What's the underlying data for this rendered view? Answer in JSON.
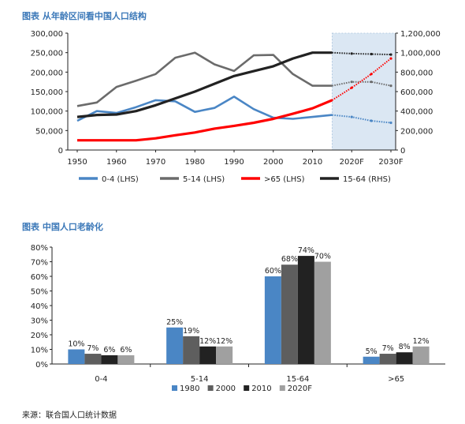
{
  "chart_data": [
    {
      "type": "line",
      "title": "图表 从年龄区间看中国人口结构",
      "x_ticks": [
        "1950",
        "1960",
        "1970",
        "1980",
        "1990",
        "2000",
        "2010",
        "2020F",
        "2030F"
      ],
      "forecast_from": 2015,
      "ylim_left": [
        0,
        300000
      ],
      "ylim_right": [
        0,
        1200000
      ],
      "left_ticks": [
        "0",
        "50,000",
        "100,000",
        "150,000",
        "200,000",
        "250,000",
        "300,000"
      ],
      "right_ticks": [
        "0",
        "200,000",
        "400,000",
        "600,000",
        "800,000",
        "1,000,000",
        "1,200,000"
      ],
      "series": [
        {
          "name": "0-4 (LHS)",
          "axis": "left",
          "color": "#4a86c5",
          "x": [
            1950,
            1955,
            1960,
            1965,
            1970,
            1975,
            1980,
            1985,
            1990,
            1995,
            2000,
            2005,
            2010,
            2015,
            2020,
            2025,
            2030
          ],
          "values": [
            75000,
            100000,
            95000,
            110000,
            128000,
            125000,
            98000,
            108000,
            137000,
            105000,
            83000,
            80000,
            85000,
            90000,
            85000,
            75000,
            70000
          ]
        },
        {
          "name": "5-14 (LHS)",
          "axis": "left",
          "color": "#6b6b6b",
          "x": [
            1950,
            1955,
            1960,
            1965,
            1970,
            1975,
            1980,
            1985,
            1990,
            1995,
            2000,
            2005,
            2010,
            2015,
            2020,
            2025,
            2030
          ],
          "values": [
            113000,
            122000,
            162000,
            178000,
            195000,
            237000,
            250000,
            220000,
            203000,
            243000,
            244000,
            195000,
            165000,
            165000,
            175000,
            175000,
            165000
          ]
        },
        {
          "name": ">65 (LHS)",
          "axis": "left",
          "color": "#ff0000",
          "x": [
            1950,
            1955,
            1960,
            1965,
            1970,
            1975,
            1980,
            1985,
            1990,
            1995,
            2000,
            2005,
            2010,
            2015,
            2020,
            2025,
            2030
          ],
          "values": [
            25000,
            25000,
            25000,
            25000,
            30000,
            38000,
            45000,
            55000,
            62000,
            70000,
            80000,
            93000,
            107000,
            128000,
            160000,
            195000,
            235000
          ]
        },
        {
          "name": "15-64 (RHS)",
          "axis": "right",
          "color": "#222222",
          "x": [
            1950,
            1955,
            1960,
            1965,
            1970,
            1975,
            1980,
            1985,
            1990,
            1995,
            2000,
            2005,
            2010,
            2015,
            2020,
            2025,
            2030
          ],
          "values": [
            340000,
            360000,
            365000,
            400000,
            460000,
            530000,
            600000,
            680000,
            760000,
            810000,
            860000,
            940000,
            1000000,
            1000000,
            990000,
            985000,
            980000
          ]
        }
      ]
    },
    {
      "type": "bar",
      "title": "图表 中国人口老龄化",
      "categories": [
        "0-4",
        "5-14",
        "15-64",
        ">65"
      ],
      "ylim": [
        0,
        80
      ],
      "y_ticks": [
        "0%",
        "10%",
        "20%",
        "30%",
        "40%",
        "50%",
        "60%",
        "70%",
        "80%"
      ],
      "series": [
        {
          "name": "1980",
          "color": "#4a86c5",
          "values": [
            10,
            25,
            60,
            5
          ]
        },
        {
          "name": "2000",
          "color": "#5e5e5e",
          "values": [
            7,
            19,
            68,
            7
          ]
        },
        {
          "name": "2010",
          "color": "#222222",
          "values": [
            6,
            12,
            74,
            8
          ]
        },
        {
          "name": "2020F",
          "color": "#a0a0a0",
          "values": [
            6,
            12,
            70,
            12
          ]
        }
      ]
    }
  ],
  "source": "来源：联合国人口统计数据"
}
